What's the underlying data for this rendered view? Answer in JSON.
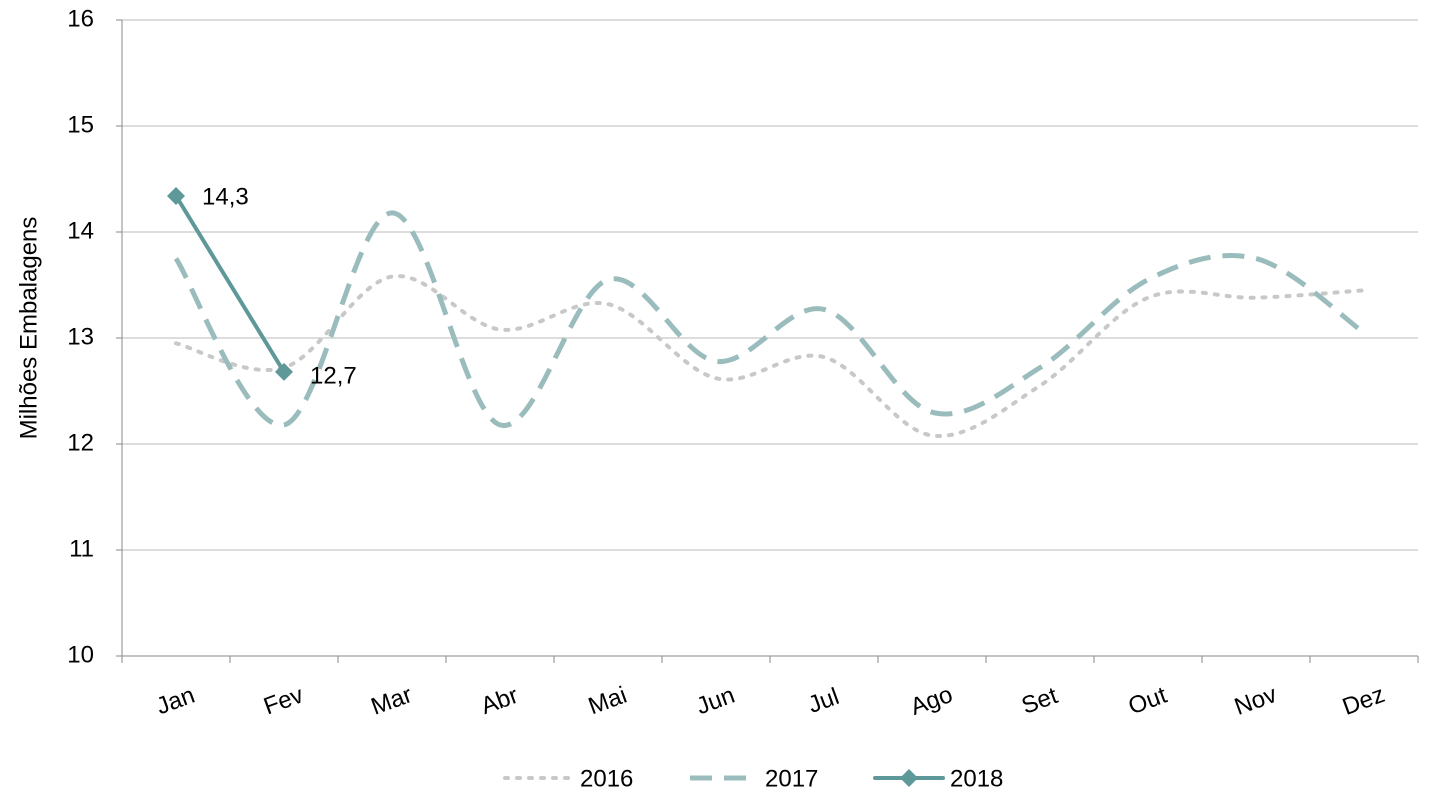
{
  "chart_data": {
    "type": "line",
    "y_label": "Milhões Embalagens",
    "categories": [
      "Jan",
      "Fev",
      "Mar",
      "Abr",
      "Mai",
      "Jun",
      "Jul",
      "Ago",
      "Set",
      "Out",
      "Nov",
      "Dez"
    ],
    "series": [
      {
        "name": "2016",
        "color": "#c8c8c8",
        "dash": "dot",
        "values": [
          12.95,
          12.72,
          13.58,
          13.08,
          13.32,
          12.62,
          12.82,
          12.08,
          12.55,
          13.38,
          13.38,
          13.45
        ]
      },
      {
        "name": "2017",
        "color": "#9bbcbc",
        "dash": "dash",
        "values": [
          13.75,
          12.18,
          14.18,
          12.18,
          13.55,
          12.78,
          13.27,
          12.3,
          12.72,
          13.55,
          13.75,
          13.05
        ]
      },
      {
        "name": "2018",
        "color": "#5f9898",
        "dash": "solid",
        "marker": "diamond",
        "values": [
          14.34,
          12.68,
          null,
          null,
          null,
          null,
          null,
          null,
          null,
          null,
          null,
          null
        ],
        "value_labels": [
          "14,3",
          "12,7",
          null,
          null,
          null,
          null,
          null,
          null,
          null,
          null,
          null,
          null
        ]
      }
    ],
    "ylim": [
      10,
      16
    ],
    "yticks": [
      10,
      11,
      12,
      13,
      14,
      15,
      16
    ],
    "grid": true,
    "legend": "bottom"
  }
}
